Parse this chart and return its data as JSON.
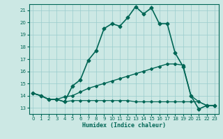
{
  "xlabel": "Humidex (Indice chaleur)",
  "ylabel": "",
  "background_color": "#cce8e4",
  "grid_color": "#99cccc",
  "line_color": "#006655",
  "xlim": [
    -0.5,
    23.5
  ],
  "ylim": [
    12.5,
    21.5
  ],
  "xticks": [
    0,
    1,
    2,
    3,
    4,
    5,
    6,
    7,
    8,
    9,
    10,
    11,
    12,
    13,
    14,
    15,
    16,
    17,
    18,
    19,
    20,
    21,
    22,
    23
  ],
  "yticks": [
    13,
    14,
    15,
    16,
    17,
    18,
    19,
    20,
    21
  ],
  "series": [
    {
      "x": [
        0,
        1,
        2,
        3,
        4,
        5,
        6,
        7,
        8,
        9,
        10,
        11,
        12,
        13,
        14,
        15,
        16,
        17,
        18,
        19,
        20,
        21,
        22,
        23
      ],
      "y": [
        14.2,
        14.0,
        13.7,
        13.7,
        13.5,
        14.8,
        15.3,
        16.9,
        17.7,
        19.5,
        19.9,
        19.7,
        20.4,
        21.3,
        20.7,
        21.2,
        19.9,
        19.9,
        17.5,
        16.4,
        14.0,
        12.9,
        13.2,
        13.2
      ],
      "marker": "D",
      "markersize": 2.5,
      "linewidth": 1.2
    },
    {
      "x": [
        0,
        1,
        2,
        3,
        4,
        5,
        6,
        7,
        8,
        9,
        10,
        11,
        12,
        13,
        14,
        15,
        16,
        17,
        18,
        19,
        20,
        21,
        22,
        23
      ],
      "y": [
        14.2,
        14.0,
        13.7,
        13.7,
        13.9,
        14.0,
        14.3,
        14.6,
        14.8,
        15.0,
        15.2,
        15.4,
        15.6,
        15.8,
        16.0,
        16.2,
        16.4,
        16.6,
        16.6,
        16.5,
        14.0,
        13.5,
        13.2,
        13.2
      ],
      "marker": "D",
      "markersize": 2.0,
      "linewidth": 1.0
    },
    {
      "x": [
        0,
        1,
        2,
        3,
        4,
        5,
        6,
        7,
        8,
        9,
        10,
        11,
        12,
        13,
        14,
        15,
        16,
        17,
        18,
        19,
        20,
        21,
        22,
        23
      ],
      "y": [
        14.2,
        14.0,
        13.7,
        13.7,
        13.5,
        13.6,
        13.6,
        13.6,
        13.6,
        13.6,
        13.6,
        13.6,
        13.6,
        13.5,
        13.5,
        13.5,
        13.5,
        13.5,
        13.5,
        13.5,
        13.5,
        13.5,
        13.2,
        13.2
      ],
      "marker": "D",
      "markersize": 1.8,
      "linewidth": 0.9
    }
  ]
}
